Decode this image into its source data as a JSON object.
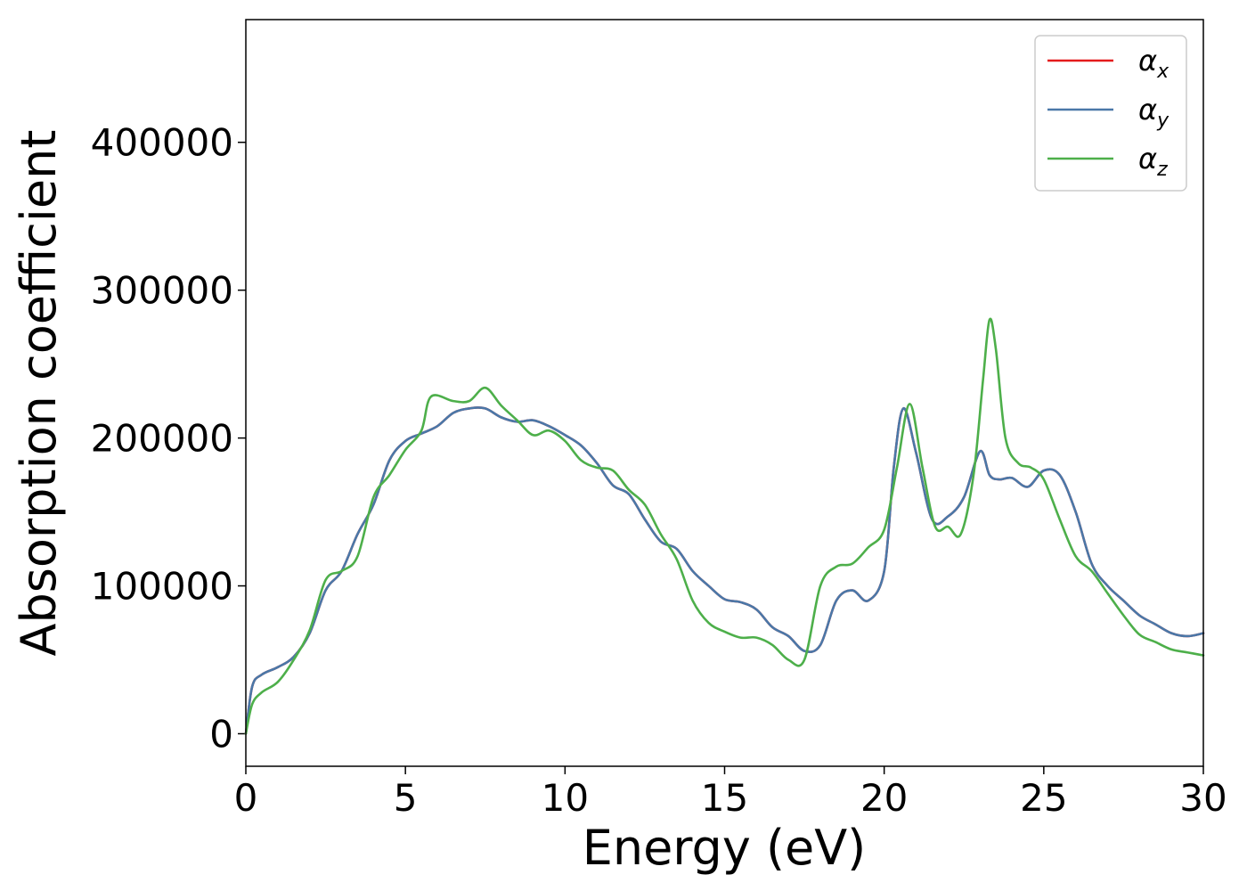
{
  "chart_data": {
    "type": "line",
    "xlabel": "Energy (eV)",
    "ylabel": "Absorption coefficient",
    "xlim": [
      0,
      30
    ],
    "ylim": [
      -22000,
      483000
    ],
    "xticks": [
      0,
      5,
      10,
      15,
      20,
      25,
      30
    ],
    "yticks": [
      0,
      100000,
      200000,
      300000,
      400000
    ],
    "grid": false,
    "legend_position": "top-right",
    "series": [
      {
        "name": "α",
        "subscript": "x",
        "color": "#e41a1c",
        "x": [
          0,
          0.2,
          0.5,
          1.0,
          1.5,
          2.0,
          2.5,
          3.0,
          3.5,
          4.0,
          4.5,
          5.0,
          5.5,
          6.0,
          6.5,
          7.0,
          7.5,
          8.0,
          8.5,
          9.0,
          9.5,
          10.0,
          10.5,
          11.0,
          11.5,
          12.0,
          12.5,
          13.0,
          13.5,
          14.0,
          14.5,
          15.0,
          15.5,
          16.0,
          16.5,
          17.0,
          17.5,
          18.0,
          18.5,
          19.0,
          19.5,
          20.0,
          20.3,
          20.6,
          21.0,
          21.5,
          22.0,
          22.5,
          23.0,
          23.3,
          23.6,
          24.0,
          24.5,
          25.0,
          25.5,
          26.0,
          26.5,
          27.0,
          27.5,
          28.0,
          28.5,
          29.0,
          29.5,
          30.0
        ],
        "values": [
          0,
          32000,
          40000,
          45000,
          52000,
          68000,
          97000,
          110000,
          135000,
          155000,
          185000,
          198000,
          203000,
          208000,
          217000,
          220000,
          220000,
          214000,
          211000,
          212000,
          208000,
          202000,
          195000,
          183000,
          168000,
          162000,
          145000,
          130000,
          125000,
          110000,
          100000,
          91000,
          89000,
          84000,
          72000,
          66000,
          56000,
          60000,
          90000,
          97000,
          90000,
          110000,
          180000,
          220000,
          190000,
          145000,
          147000,
          160000,
          191000,
          175000,
          172000,
          173000,
          167000,
          178000,
          175000,
          150000,
          115000,
          100000,
          90000,
          80000,
          74000,
          68000,
          66000,
          68000
        ]
      },
      {
        "name": "α",
        "subscript": "y",
        "color": "#4a78a8",
        "x": [
          0,
          0.2,
          0.5,
          1.0,
          1.5,
          2.0,
          2.5,
          3.0,
          3.5,
          4.0,
          4.5,
          5.0,
          5.5,
          6.0,
          6.5,
          7.0,
          7.5,
          8.0,
          8.5,
          9.0,
          9.5,
          10.0,
          10.5,
          11.0,
          11.5,
          12.0,
          12.5,
          13.0,
          13.5,
          14.0,
          14.5,
          15.0,
          15.5,
          16.0,
          16.5,
          17.0,
          17.5,
          18.0,
          18.5,
          19.0,
          19.5,
          20.0,
          20.3,
          20.6,
          21.0,
          21.5,
          22.0,
          22.5,
          23.0,
          23.3,
          23.6,
          24.0,
          24.5,
          25.0,
          25.5,
          26.0,
          26.5,
          27.0,
          27.5,
          28.0,
          28.5,
          29.0,
          29.5,
          30.0
        ],
        "values": [
          0,
          32000,
          40000,
          45000,
          52000,
          68000,
          97000,
          110000,
          135000,
          155000,
          185000,
          198000,
          203000,
          208000,
          217000,
          220000,
          220000,
          214000,
          211000,
          212000,
          208000,
          202000,
          195000,
          183000,
          168000,
          162000,
          145000,
          130000,
          125000,
          110000,
          100000,
          91000,
          89000,
          84000,
          72000,
          66000,
          56000,
          60000,
          90000,
          97000,
          90000,
          110000,
          180000,
          220000,
          190000,
          145000,
          147000,
          160000,
          191000,
          175000,
          172000,
          173000,
          167000,
          178000,
          175000,
          150000,
          115000,
          100000,
          90000,
          80000,
          74000,
          68000,
          66000,
          68000
        ]
      },
      {
        "name": "α",
        "subscript": "z",
        "color": "#4daf4a",
        "x": [
          0,
          0.2,
          0.5,
          1.0,
          1.5,
          2.0,
          2.5,
          3.0,
          3.5,
          4.0,
          4.5,
          5.0,
          5.5,
          5.8,
          6.5,
          7.0,
          7.5,
          8.0,
          8.5,
          9.0,
          9.5,
          10.0,
          10.5,
          11.0,
          11.5,
          12.0,
          12.5,
          13.0,
          13.5,
          14.0,
          14.5,
          15.0,
          15.5,
          16.0,
          16.5,
          17.0,
          17.5,
          18.0,
          18.5,
          19.0,
          19.5,
          20.0,
          20.4,
          20.8,
          21.2,
          21.6,
          22.0,
          22.4,
          22.8,
          23.1,
          23.3,
          23.5,
          23.8,
          24.2,
          24.6,
          25.0,
          25.5,
          26.0,
          26.5,
          27.0,
          27.5,
          28.0,
          28.5,
          29.0,
          29.5,
          30.0
        ],
        "values": [
          0,
          20000,
          28000,
          35000,
          50000,
          70000,
          104000,
          110000,
          120000,
          160000,
          175000,
          192000,
          205000,
          228000,
          225000,
          225000,
          234000,
          222000,
          212000,
          202000,
          205000,
          198000,
          185000,
          180000,
          178000,
          165000,
          155000,
          135000,
          118000,
          90000,
          75000,
          69000,
          65000,
          65000,
          60000,
          50000,
          50000,
          100000,
          113000,
          115000,
          126000,
          138000,
          180000,
          223000,
          180000,
          140000,
          140000,
          135000,
          175000,
          240000,
          280000,
          260000,
          200000,
          183000,
          180000,
          172000,
          145000,
          120000,
          110000,
          95000,
          80000,
          67000,
          62000,
          57000,
          55000,
          53000
        ]
      }
    ]
  }
}
